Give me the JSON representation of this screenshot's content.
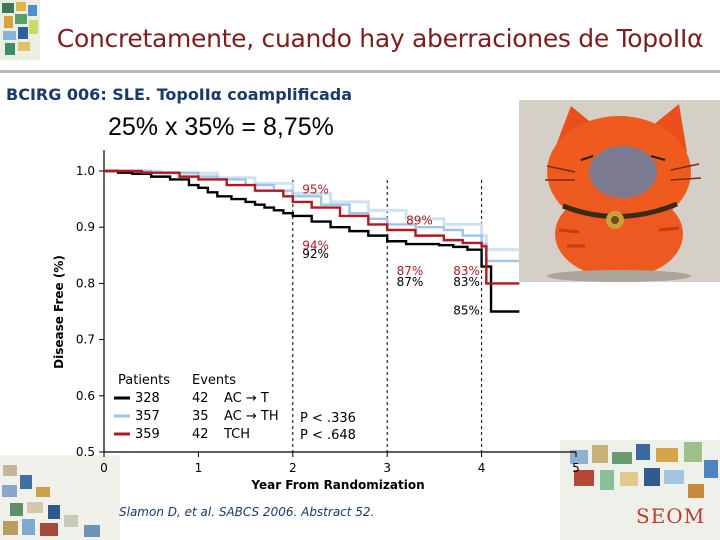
{
  "header": {
    "title": "Concretamente, cuando hay aberraciones de TopoIIα",
    "subtitle": "BCIRG 006: SLE. TopoIIα coamplificada",
    "formula": "25% x  35% = 8,75%"
  },
  "citation": "Slamon D, et al. SABCS 2006. Abstract 52.",
  "logo": "SEOM",
  "colors": {
    "title": "#7a1f1f",
    "subtitle": "#1a3a6b",
    "series_black": "#000000",
    "series_blue": "#9fc4e6",
    "series_red": "#b01822",
    "logo": "#c23a2c"
  },
  "chart_data": {
    "type": "line",
    "title": "",
    "xlabel": "Year From Randomization",
    "ylabel": "Disease Free (%)",
    "xlim": [
      0,
      5
    ],
    "ylim": [
      0.5,
      1.0
    ],
    "x_ticks": [
      "0",
      "1",
      "2",
      "3",
      "4",
      "5"
    ],
    "y_ticks": [
      "0.5",
      "0.6",
      "0.7",
      "0.8",
      "0.9",
      "1.0"
    ],
    "grid": false,
    "legend": {
      "placement": "bottom-left",
      "header_patients": "Patients",
      "header_events": "Events",
      "rows": [
        {
          "patients": "328",
          "events": "42",
          "arm": "AC → T",
          "color": "#000000"
        },
        {
          "patients": "357",
          "events": "35",
          "arm": "AC → TH",
          "color": "#9fc4e6"
        },
        {
          "patients": "359",
          "events": "42",
          "arm": "TCH",
          "color": "#b01822"
        }
      ]
    },
    "pvalues": [
      "P < .336",
      "P < .648"
    ],
    "annotations": [
      {
        "text": "95%",
        "x": 2.1,
        "y": 0.96,
        "color": "#b01822"
      },
      {
        "text": "89%",
        "x": 3.2,
        "y": 0.905,
        "color": "#b01822"
      },
      {
        "text": "94%",
        "x": 2.1,
        "y": 0.86,
        "color": "#b01822"
      },
      {
        "text": "92%",
        "x": 2.1,
        "y": 0.845,
        "color": "#000000"
      },
      {
        "text": "87%",
        "x": 3.1,
        "y": 0.815,
        "color": "#b01822"
      },
      {
        "text": "87%",
        "x": 3.1,
        "y": 0.795,
        "color": "#000000"
      },
      {
        "text": "83%",
        "x": 3.7,
        "y": 0.815,
        "color": "#b01822"
      },
      {
        "text": "83%",
        "x": 3.7,
        "y": 0.795,
        "color": "#000000"
      },
      {
        "text": "85%",
        "x": 3.7,
        "y": 0.745,
        "color": "#000000"
      }
    ],
    "reference_lines_x": [
      2,
      3,
      4
    ],
    "series": [
      {
        "key": "black",
        "color": "#000000",
        "points": [
          [
            0,
            1.0
          ],
          [
            0.15,
            0.997
          ],
          [
            0.3,
            0.995
          ],
          [
            0.5,
            0.99
          ],
          [
            0.7,
            0.985
          ],
          [
            0.9,
            0.975
          ],
          [
            1.0,
            0.97
          ],
          [
            1.1,
            0.962
          ],
          [
            1.2,
            0.955
          ],
          [
            1.35,
            0.95
          ],
          [
            1.5,
            0.945
          ],
          [
            1.6,
            0.94
          ],
          [
            1.7,
            0.935
          ],
          [
            1.8,
            0.93
          ],
          [
            1.9,
            0.925
          ],
          [
            2.0,
            0.92
          ],
          [
            2.2,
            0.91
          ],
          [
            2.4,
            0.9
          ],
          [
            2.6,
            0.893
          ],
          [
            2.8,
            0.885
          ],
          [
            3.0,
            0.875
          ],
          [
            3.2,
            0.87
          ],
          [
            3.4,
            0.87
          ],
          [
            3.55,
            0.868
          ],
          [
            3.7,
            0.865
          ],
          [
            3.85,
            0.86
          ],
          [
            4.0,
            0.83
          ],
          [
            4.1,
            0.75
          ],
          [
            4.4,
            0.75
          ]
        ]
      },
      {
        "key": "blue",
        "color": "#9fc4e6",
        "points": [
          [
            0,
            1.0
          ],
          [
            0.5,
            0.997
          ],
          [
            1.0,
            0.99
          ],
          [
            1.2,
            0.985
          ],
          [
            1.5,
            0.975
          ],
          [
            1.8,
            0.965
          ],
          [
            2.0,
            0.955
          ],
          [
            2.3,
            0.94
          ],
          [
            2.6,
            0.925
          ],
          [
            2.8,
            0.915
          ],
          [
            3.0,
            0.905
          ],
          [
            3.3,
            0.9
          ],
          [
            3.6,
            0.895
          ],
          [
            3.8,
            0.885
          ],
          [
            4.0,
            0.87
          ],
          [
            4.05,
            0.84
          ],
          [
            4.4,
            0.84
          ]
        ]
      },
      {
        "key": "light",
        "color": "#cfe2f2",
        "points": [
          [
            0,
            1.0
          ],
          [
            0.6,
            0.996
          ],
          [
            1.2,
            0.988
          ],
          [
            1.6,
            0.978
          ],
          [
            2.0,
            0.96
          ],
          [
            2.4,
            0.945
          ],
          [
            2.8,
            0.93
          ],
          [
            3.2,
            0.915
          ],
          [
            3.6,
            0.905
          ],
          [
            4.0,
            0.885
          ],
          [
            4.05,
            0.86
          ],
          [
            4.4,
            0.86
          ]
        ]
      },
      {
        "key": "red",
        "color": "#b01822",
        "points": [
          [
            0,
            1.0
          ],
          [
            0.4,
            0.997
          ],
          [
            0.8,
            0.99
          ],
          [
            1.0,
            0.985
          ],
          [
            1.3,
            0.975
          ],
          [
            1.6,
            0.965
          ],
          [
            1.9,
            0.955
          ],
          [
            2.0,
            0.945
          ],
          [
            2.2,
            0.935
          ],
          [
            2.5,
            0.92
          ],
          [
            2.8,
            0.905
          ],
          [
            3.0,
            0.895
          ],
          [
            3.3,
            0.885
          ],
          [
            3.6,
            0.877
          ],
          [
            3.8,
            0.872
          ],
          [
            4.0,
            0.866
          ],
          [
            4.05,
            0.8
          ],
          [
            4.4,
            0.8
          ]
        ]
      }
    ]
  }
}
